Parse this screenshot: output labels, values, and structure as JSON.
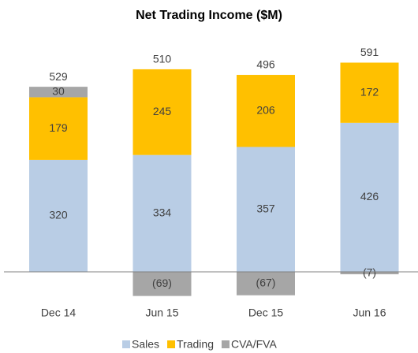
{
  "chart_data": {
    "type": "stacked_bar",
    "title": "Net Trading Income ($M)",
    "categories": [
      "Dec 14",
      "Jun 15",
      "Dec 15",
      "Jun 16"
    ],
    "series": [
      {
        "name": "Sales",
        "color": "#b9cde5",
        "values": [
          320,
          334,
          357,
          426
        ]
      },
      {
        "name": "Trading",
        "color": "#ffc000",
        "values": [
          179,
          245,
          206,
          172
        ]
      },
      {
        "name": "CVA/FVA",
        "color": "#a6a6a6",
        "values": [
          30,
          -69,
          -67,
          -7
        ],
        "value_labels": [
          "30",
          "(69)",
          "(67)",
          "(7)"
        ]
      }
    ],
    "totals": [
      529,
      510,
      496,
      591
    ],
    "legend": "bottom"
  }
}
